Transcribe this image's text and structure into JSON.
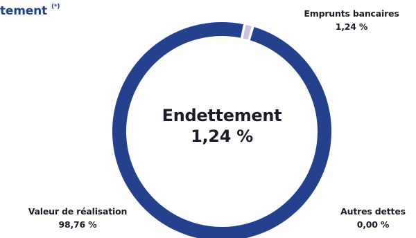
{
  "header": {
    "title": "tement",
    "note": "(*)"
  },
  "colors": {
    "primary": "#23418c",
    "secondary": "#c9c2e0",
    "text": "#1c1c28",
    "background": "#ffffff"
  },
  "chart_data": {
    "type": "pie",
    "style": "donut",
    "center": {
      "label": "Endettement",
      "value": "1,24 %"
    },
    "slices": [
      {
        "name": "Emprunts bancaires",
        "value": 1.24,
        "value_label": "1,24 %",
        "color": "#c9c2e0"
      },
      {
        "name": "Autres dettes",
        "value": 0.0,
        "value_label": "0,00 %",
        "color": "#23418c"
      },
      {
        "name": "Valeur de réalisation",
        "value": 98.76,
        "value_label": "98,76 %",
        "color": "#23418c"
      }
    ],
    "start_angle_deg": 12
  }
}
